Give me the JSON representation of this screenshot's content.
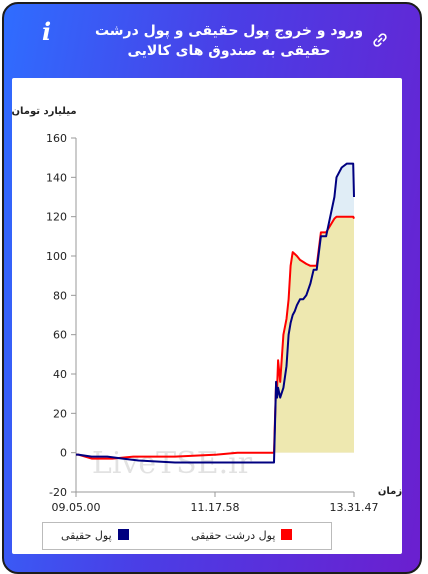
{
  "header": {
    "title": "ورود و خروج پول حقیقی و پول درشت حقیقی به صندوق های کالایی",
    "info_icon": "i"
  },
  "chart_data": {
    "type": "line",
    "ylabel": "میلیارد تومان",
    "xlabel": "زمان",
    "ylim": [
      -20,
      160
    ],
    "yticks": [
      -20,
      0,
      20,
      40,
      60,
      80,
      100,
      120,
      140,
      160
    ],
    "xticks": [
      "09.05.00",
      "11.17.58",
      "13.31.47"
    ],
    "xlim_minutes": [
      545,
      811.8
    ],
    "watermark": "LiveTSE.ir",
    "grid": false,
    "legend_position": "bottom",
    "series": [
      {
        "name": "پول حقیقی",
        "color": "#000080",
        "x": [
          545,
          547,
          560,
          575,
          590,
          605,
          640,
          680,
          720,
          735,
          737,
          738,
          739,
          741,
          744,
          747,
          749,
          751,
          753,
          755,
          757,
          760,
          763,
          766,
          770,
          773,
          776,
          780,
          785,
          793,
          795,
          800,
          805,
          811,
          811.8
        ],
        "y": [
          -1,
          -1,
          -2,
          -2,
          -3,
          -4,
          -5,
          -5,
          -5,
          -5,
          36,
          28,
          33,
          28,
          33,
          44,
          60,
          66,
          70,
          72,
          75,
          78,
          78,
          80,
          86,
          93,
          93,
          110,
          110,
          130,
          140,
          145,
          147,
          147,
          130
        ]
      },
      {
        "name": "پول درشت حقیقی",
        "color": "#ff0000",
        "x": [
          545,
          547,
          560,
          580,
          600,
          640,
          680,
          700,
          720,
          735,
          737,
          738,
          739,
          741,
          744,
          747,
          749,
          751,
          753,
          755,
          757,
          760,
          763,
          766,
          770,
          773,
          776,
          780,
          785,
          793,
          795,
          800,
          805,
          811,
          811.8
        ],
        "y": [
          -1,
          -1,
          -3,
          -3,
          -2,
          -2,
          -1,
          0,
          0,
          0,
          36,
          33,
          47,
          36,
          60,
          68,
          78,
          95,
          102,
          101,
          100,
          98,
          97,
          96,
          95,
          95,
          95,
          112,
          112,
          119,
          120,
          120,
          120,
          120,
          119
        ]
      }
    ]
  }
}
